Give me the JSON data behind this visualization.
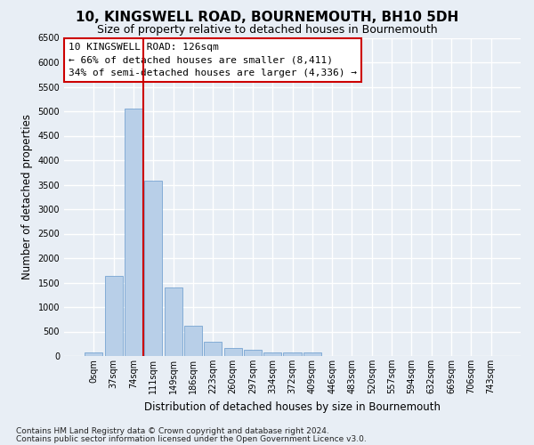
{
  "title1": "10, KINGSWELL ROAD, BOURNEMOUTH, BH10 5DH",
  "title2": "Size of property relative to detached houses in Bournemouth",
  "xlabel": "Distribution of detached houses by size in Bournemouth",
  "ylabel": "Number of detached properties",
  "bin_labels": [
    "0sqm",
    "37sqm",
    "74sqm",
    "111sqm",
    "149sqm",
    "186sqm",
    "223sqm",
    "260sqm",
    "297sqm",
    "334sqm",
    "372sqm",
    "409sqm",
    "446sqm",
    "483sqm",
    "520sqm",
    "557sqm",
    "594sqm",
    "632sqm",
    "669sqm",
    "706sqm",
    "743sqm"
  ],
  "bar_values": [
    70,
    1630,
    5060,
    3580,
    1400,
    610,
    290,
    155,
    120,
    80,
    65,
    65,
    0,
    0,
    0,
    0,
    0,
    0,
    0,
    0,
    0
  ],
  "bar_color": "#b8cfe8",
  "bar_edge_color": "#6699cc",
  "vline_x": 2.5,
  "vline_color": "#cc0000",
  "annotation_text": "10 KINGSWELL ROAD: 126sqm\n← 66% of detached houses are smaller (8,411)\n34% of semi-detached houses are larger (4,336) →",
  "ylim": [
    0,
    6500
  ],
  "yticks": [
    0,
    500,
    1000,
    1500,
    2000,
    2500,
    3000,
    3500,
    4000,
    4500,
    5000,
    5500,
    6000,
    6500
  ],
  "bg_color": "#e8eef5",
  "grid_color": "#ffffff",
  "title_fontsize": 11,
  "subtitle_fontsize": 9,
  "axis_label_fontsize": 8.5,
  "tick_fontsize": 7,
  "annotation_fontsize": 8,
  "footer_fontsize": 6.5,
  "footer1": "Contains HM Land Registry data © Crown copyright and database right 2024.",
  "footer2": "Contains public sector information licensed under the Open Government Licence v3.0."
}
